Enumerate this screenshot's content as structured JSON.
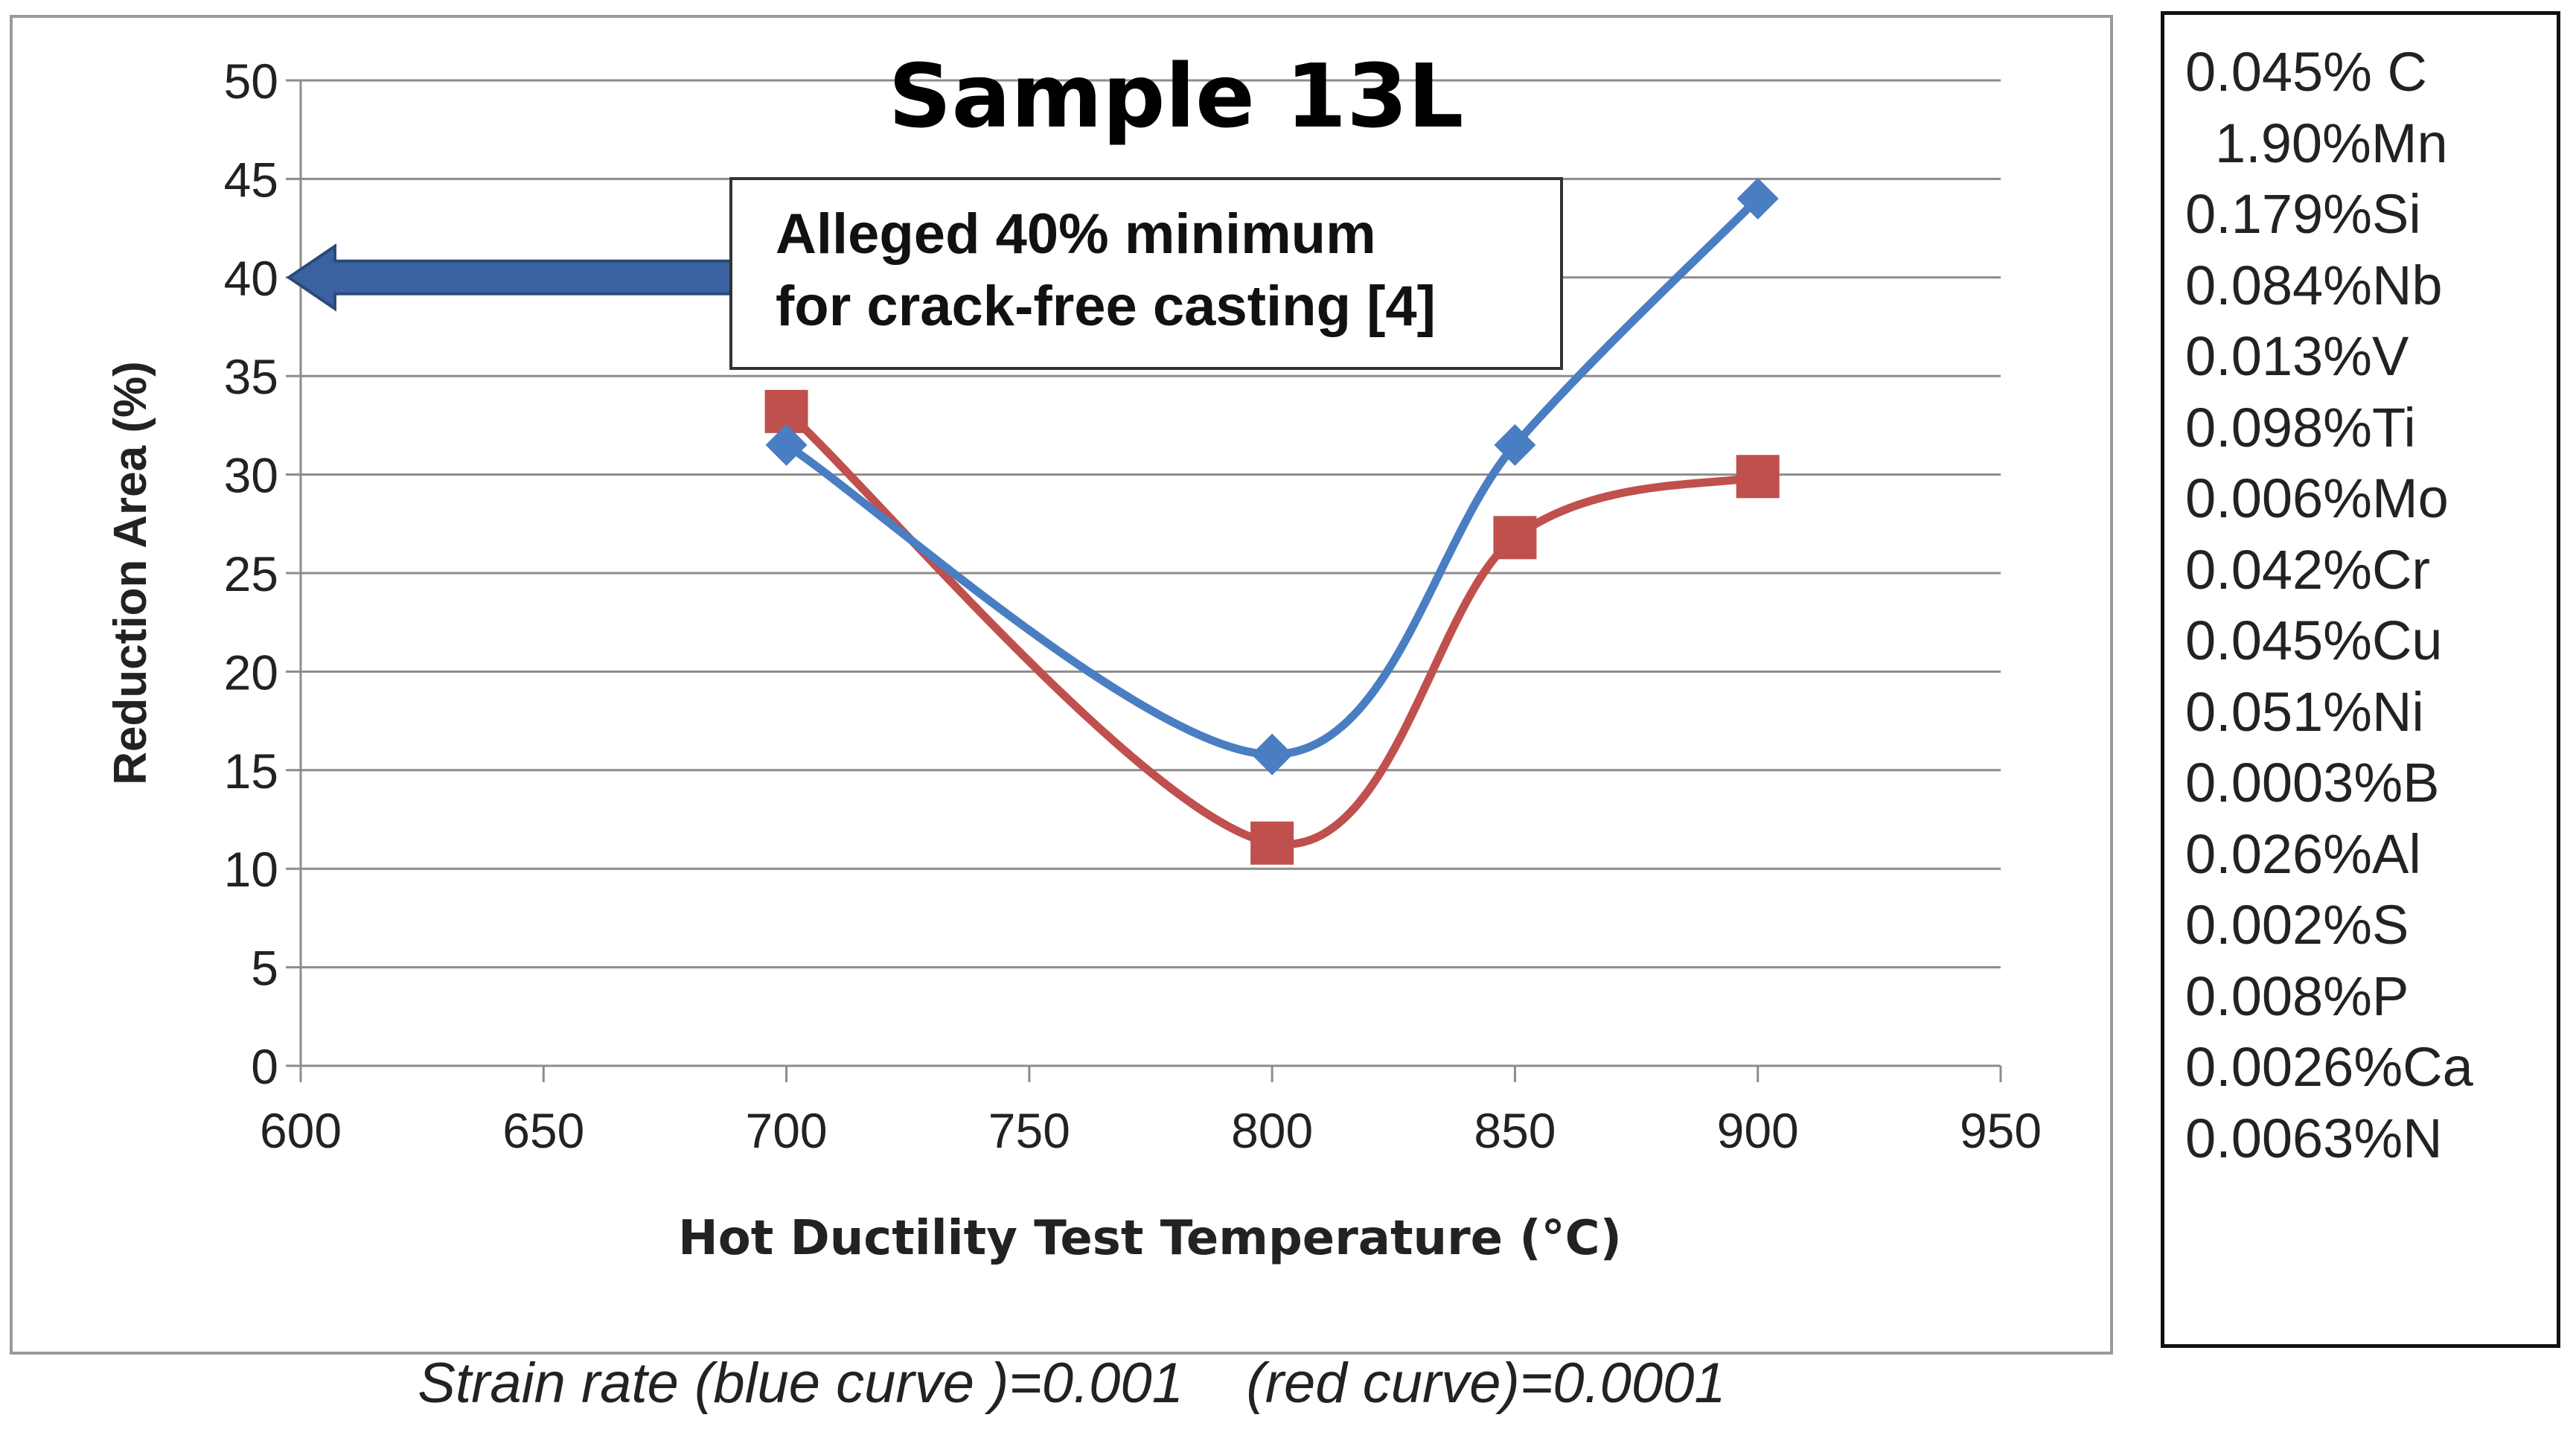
{
  "chart_data": {
    "type": "line",
    "title": "Sample 13L",
    "xlabel": "Hot Ductility Test Temperature (°C)",
    "ylabel": "Reduction Area (%)",
    "xlim": [
      600,
      950
    ],
    "ylim": [
      0,
      50
    ],
    "x_ticks": [
      "600",
      "650",
      "700",
      "750",
      "800",
      "850",
      "900",
      "950"
    ],
    "y_ticks": [
      "0",
      "5",
      "10",
      "15",
      "20",
      "25",
      "30",
      "35",
      "40",
      "45",
      "50"
    ],
    "grid": "horizontal",
    "series": [
      {
        "name": "Strain rate 0.001 (blue curve)",
        "color": "#4a7ec2",
        "marker": "diamond",
        "x": [
          700,
          800,
          850,
          900
        ],
        "y": [
          31.5,
          15.8,
          31.5,
          44.0
        ]
      },
      {
        "name": "Strain rate 0.0001 (red curve)",
        "color": "#c0504d",
        "marker": "square",
        "x": [
          700,
          800,
          850,
          900
        ],
        "y": [
          33.2,
          11.3,
          26.8,
          29.9
        ]
      }
    ],
    "annotation": {
      "line1": "Alleged 40% minimum",
      "line2": "for crack-free casting [4]",
      "arrow_value": 40,
      "arrow_color": "#3a62a0"
    }
  },
  "caption": "Strain rate (blue curve )=0.001    (red curve)=0.0001",
  "composition": [
    "0.045% C",
    "1.90%Mn",
    "0.179%Si",
    "0.084%Nb",
    "0.013%V",
    "0.098%Ti",
    "0.006%Mo",
    "0.042%Cr",
    "0.045%Cu",
    "0.051%Ni",
    "0.0003%B",
    "0.026%Al",
    "0.002%S",
    "0.008%P",
    "0.0026%Ca",
    "0.0063%N"
  ]
}
